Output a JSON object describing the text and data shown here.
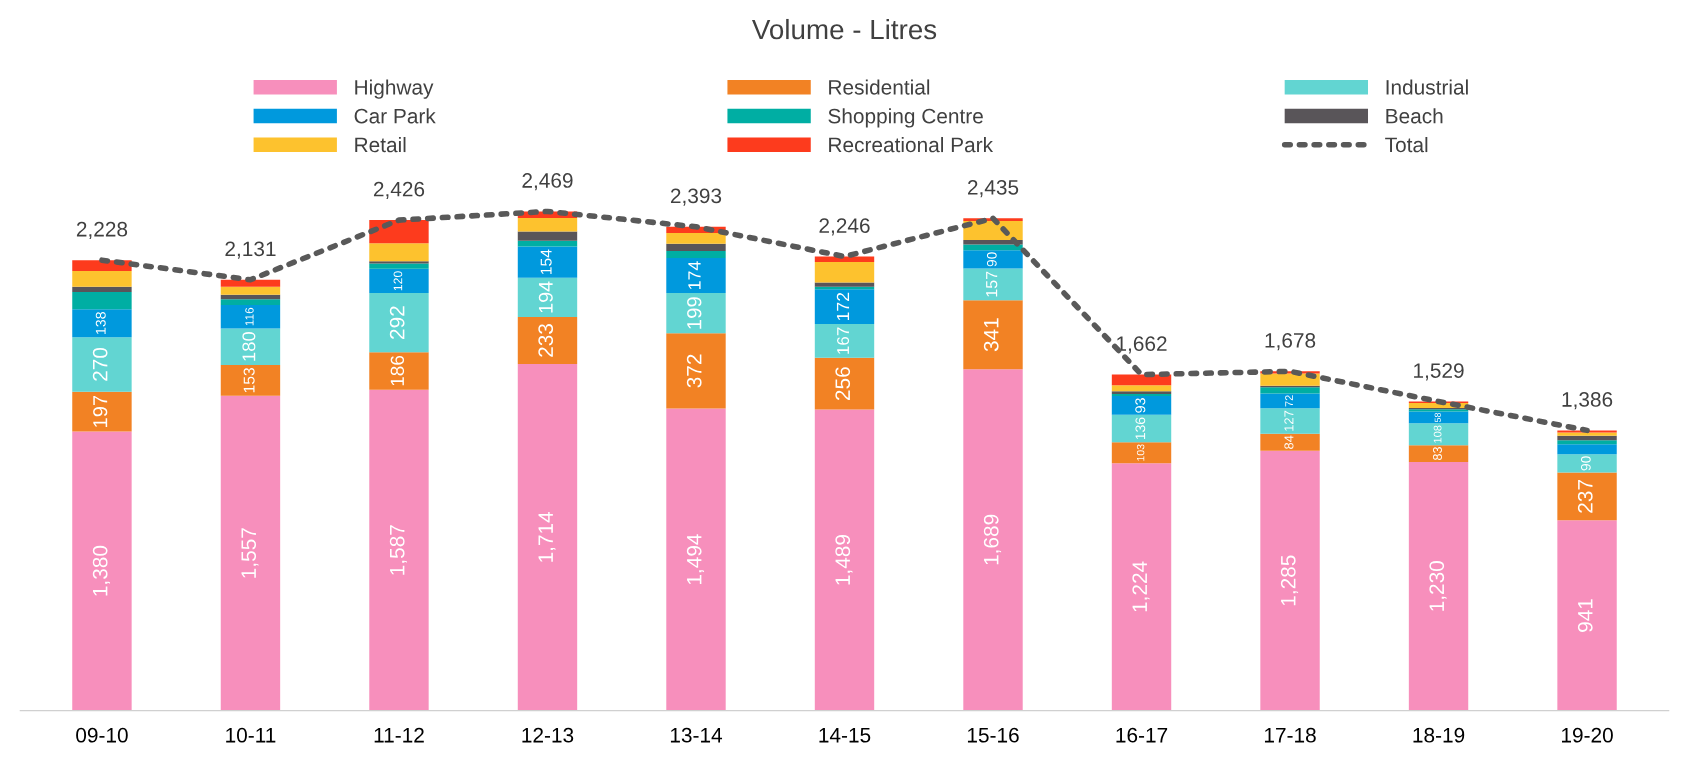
{
  "chart_data": {
    "type": "bar",
    "title": "Volume - Litres",
    "stacked": true,
    "legend": "top",
    "grid": false,
    "tick_labels": "x",
    "categories": [
      "09-10",
      "10-11",
      "11-12",
      "12-13",
      "13-14",
      "14-15",
      "15-16",
      "16-17",
      "17-18",
      "18-19",
      "19-20"
    ],
    "series": [
      {
        "name": "Highway",
        "color": "#f78fbc",
        "values": [
          1380,
          1557,
          1587,
          1714,
          1494,
          1489,
          1689,
          1224,
          1285,
          1230,
          941
        ],
        "value_labels": [
          "1,380",
          "1,557",
          "1,587",
          "1,714",
          "1,494",
          "1,489",
          "1,689",
          "1,224",
          "1,285",
          "1,230",
          "941"
        ]
      },
      {
        "name": "Residential",
        "color": "#f28224",
        "values": [
          197,
          153,
          186,
          233,
          372,
          256,
          341,
          103,
          84,
          83,
          237
        ],
        "value_labels": [
          "197",
          "153",
          "186",
          "233",
          "372",
          "256",
          "341",
          "103",
          "84",
          "83",
          "237"
        ]
      },
      {
        "name": "Industrial",
        "color": "#62d5d2",
        "values": [
          270,
          180,
          292,
          194,
          199,
          167,
          157,
          136,
          127,
          108,
          90
        ],
        "value_labels": [
          "270",
          "180",
          "292",
          "194",
          "199",
          "167",
          "157",
          "136",
          "127",
          "108",
          "90"
        ]
      },
      {
        "name": "Car Park",
        "color": "#0099dd",
        "values": [
          138,
          116,
          120,
          154,
          174,
          172,
          90,
          93,
          72,
          58,
          50
        ],
        "value_labels": [
          "138",
          "116",
          "120",
          "154",
          "174",
          "172",
          "90",
          "93",
          "72",
          "58",
          null
        ]
      },
      {
        "name": "Shopping Centre",
        "color": "#00aea3",
        "values": [
          86,
          29,
          26,
          29,
          34,
          12,
          29,
          10,
          31,
          12,
          19
        ]
      },
      {
        "name": "Beach",
        "color": "#595559",
        "values": [
          26,
          22,
          12,
          46,
          36,
          22,
          22,
          14,
          8,
          6,
          23
        ]
      },
      {
        "name": "Retail",
        "color": "#fdc22e",
        "values": [
          77,
          40,
          88,
          67,
          53,
          101,
          94,
          29,
          61,
          24,
          15
        ]
      },
      {
        "name": "Recreational Park",
        "color": "#fd3b1d",
        "values": [
          54,
          34,
          115,
          32,
          31,
          27,
          13,
          53,
          10,
          8,
          11
        ]
      },
      {
        "name": "Total",
        "type": "line",
        "color": "#595959",
        "line_style": "dotted",
        "marker": "none",
        "values": [
          2228,
          2131,
          2426,
          2469,
          2393,
          2246,
          2435,
          1662,
          1678,
          1529,
          1386
        ],
        "value_labels": [
          "2,228",
          "2,131",
          "2,426",
          "2,469",
          "2,393",
          "2,246",
          "2,435",
          "1,662",
          "1,678",
          "1,529",
          "1,386"
        ]
      }
    ]
  }
}
